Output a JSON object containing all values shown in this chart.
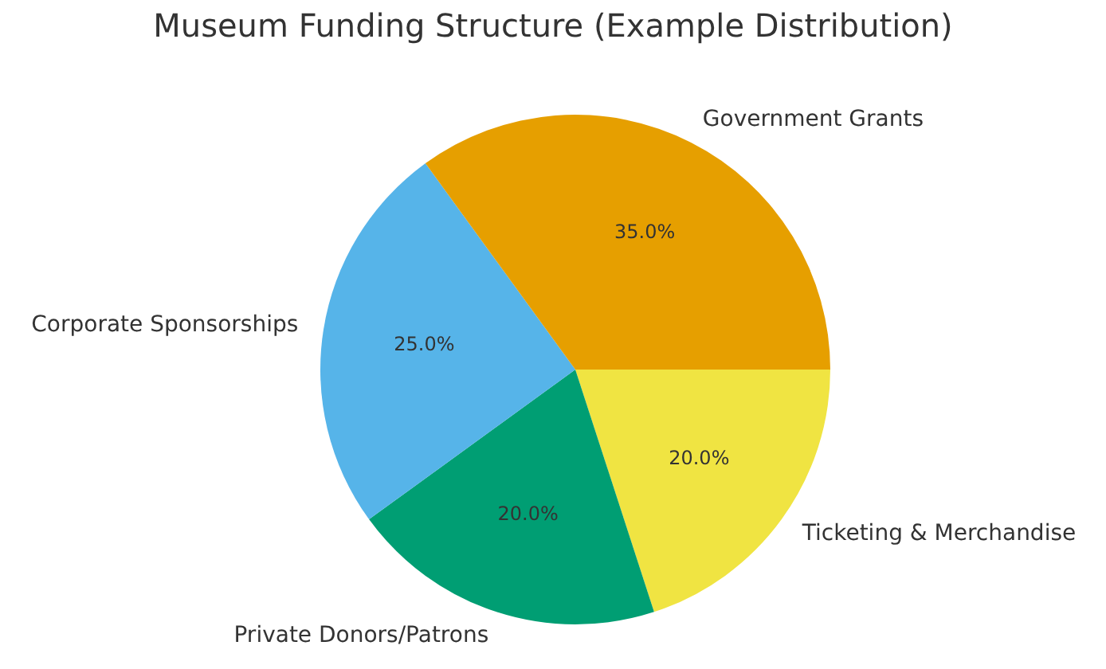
{
  "chart_data": {
    "type": "pie",
    "title": "Museum Funding Structure (Example Distribution)",
    "categories": [
      "Government Grants",
      "Corporate Sponsorships",
      "Private Donors/Patrons",
      "Ticketing & Merchandise"
    ],
    "values": [
      35,
      25,
      20,
      20
    ],
    "colors": [
      "#e69f00",
      "#56b4e9",
      "#009e73",
      "#f0e442"
    ],
    "value_labels": [
      "35.0%",
      "25.0%",
      "20.0%",
      "20.0%"
    ],
    "legend": false
  }
}
